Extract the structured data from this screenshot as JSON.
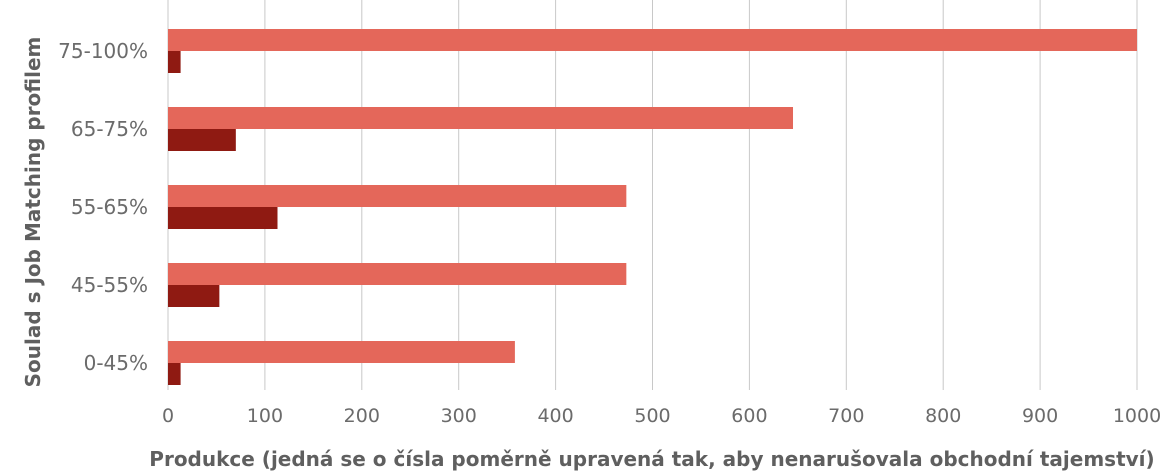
{
  "chart_data": {
    "type": "bar",
    "orientation": "horizontal",
    "categories": [
      "75-100%",
      "65-75%",
      "55-65%",
      "45-55%",
      "0-45%"
    ],
    "series": [
      {
        "color": "#e4675a",
        "values": [
          1000,
          645,
          473,
          473,
          358
        ]
      },
      {
        "color": "#8f1a12",
        "values": [
          13,
          70,
          113,
          53,
          13
        ]
      }
    ],
    "xlabel": "Produkce (jedná se o čísla poměrně upravená tak, aby nenarušovala obchodní tajemství)",
    "ylabel": "Soulad s Job Matching profilem",
    "xlim": [
      0,
      1000
    ],
    "xticks": [
      "0",
      "100",
      "200",
      "300",
      "400",
      "500",
      "600",
      "700",
      "800",
      "900",
      "1000"
    ],
    "grid": "vertical"
  }
}
